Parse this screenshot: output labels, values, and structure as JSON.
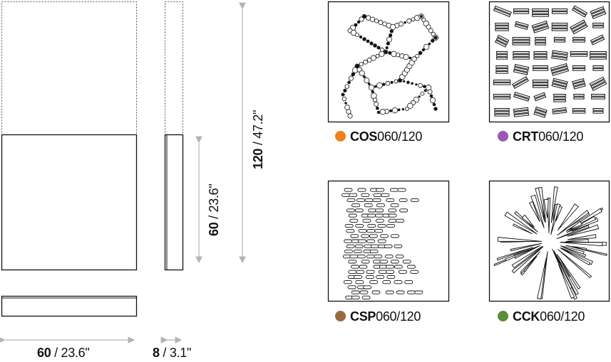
{
  "dimensions": {
    "width_bold": "60",
    "width_rest": " / 23.6\"",
    "depth_bold": "8",
    "depth_rest": " / 3.1\"",
    "height_small_bold": "60",
    "height_small_rest": " / 23.6\"",
    "height_large_bold": "120",
    "height_large_rest": " / 47.2\""
  },
  "patterns": [
    {
      "code": "COS",
      "size": "060/120",
      "color": "#f07f1e",
      "icon": "constellation-pattern-icon"
    },
    {
      "code": "CRT",
      "size": "060/120",
      "color": "#9b59b6",
      "icon": "crossed-bars-pattern-icon"
    },
    {
      "code": "CSP",
      "size": "060/120",
      "color": "#9a6a3e",
      "icon": "capsule-slots-pattern-icon"
    },
    {
      "code": "CCK",
      "size": "060/120",
      "color": "#5a8c3a",
      "icon": "crack-burst-pattern-icon"
    }
  ]
}
